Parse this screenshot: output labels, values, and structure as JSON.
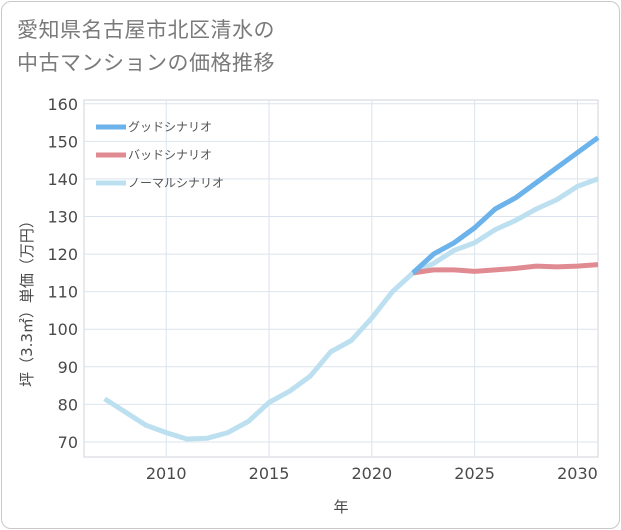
{
  "page": {
    "title_line1": "愛知県名古屋市北区清水の",
    "title_line2": "中古マンションの価格推移"
  },
  "chart_data": {
    "type": "line",
    "title": "愛知県名古屋市北区清水の中古マンションの価格推移",
    "xlabel": "年",
    "ylabel": "坪（3.3㎡）単価（万円）",
    "xlim": [
      2006,
      2031
    ],
    "ylim": [
      66,
      161
    ],
    "xticks": [
      2010,
      2015,
      2020,
      2025,
      2030
    ],
    "yticks": [
      70,
      80,
      90,
      100,
      110,
      120,
      130,
      140,
      150,
      160
    ],
    "grid": true,
    "legend_position": "top-left",
    "series": [
      {
        "name": "グッドシナリオ",
        "color": "#6bb3ea",
        "x": [
          2022,
          2023,
          2024,
          2025,
          2026,
          2027,
          2028,
          2029,
          2030,
          2031
        ],
        "y": [
          115,
          120,
          123,
          127,
          132,
          135,
          139,
          143,
          147,
          151
        ]
      },
      {
        "name": "バッドシナリオ",
        "color": "#e08b92",
        "x": [
          2022,
          2023,
          2024,
          2025,
          2026,
          2027,
          2028,
          2029,
          2030,
          2031
        ],
        "y": [
          115,
          115.8,
          115.8,
          115.4,
          115.8,
          116.2,
          116.8,
          116.6,
          116.8,
          117.2
        ]
      },
      {
        "name": "ノーマルシナリオ",
        "color": "#bde0f0",
        "x": [
          2007,
          2008,
          2009,
          2010,
          2011,
          2012,
          2013,
          2014,
          2015,
          2016,
          2017,
          2018,
          2019,
          2020,
          2021,
          2022,
          2023,
          2024,
          2025,
          2026,
          2027,
          2028,
          2029,
          2030,
          2031
        ],
        "y": [
          81.5,
          78,
          74.5,
          72.5,
          70.8,
          71,
          72.5,
          75.5,
          80.5,
          83.5,
          87.5,
          94,
          97,
          103,
          110,
          115,
          117.5,
          121,
          123,
          126.5,
          129,
          132,
          134.5,
          138,
          140
        ]
      }
    ]
  }
}
